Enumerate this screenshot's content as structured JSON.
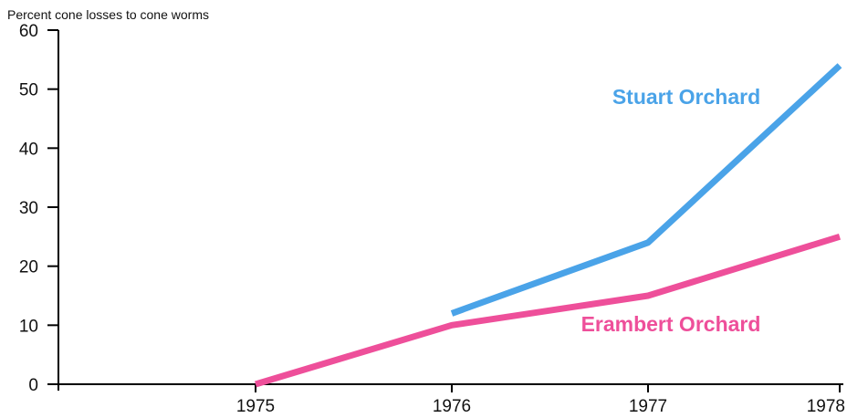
{
  "chart_data": {
    "type": "line",
    "ylabel": "Percent cone losses to cone worms",
    "xlabel": "",
    "ylim": [
      0,
      60
    ],
    "y_ticks": [
      "0",
      "10",
      "20",
      "30",
      "40",
      "50",
      "60"
    ],
    "x_ticks": [
      "1975",
      "1976",
      "1977",
      "1978"
    ],
    "grid": false,
    "series": [
      {
        "name": "Stuart Orchard",
        "color": "#4aa3e8",
        "x": [
          "1976",
          "1977",
          "1978"
        ],
        "values": [
          12,
          24,
          54
        ]
      },
      {
        "name": "Erambert Orchard",
        "color": "#ee4f9a",
        "x": [
          "1975",
          "1976",
          "1977",
          "1978"
        ],
        "values": [
          0,
          10,
          15,
          25
        ]
      }
    ]
  }
}
